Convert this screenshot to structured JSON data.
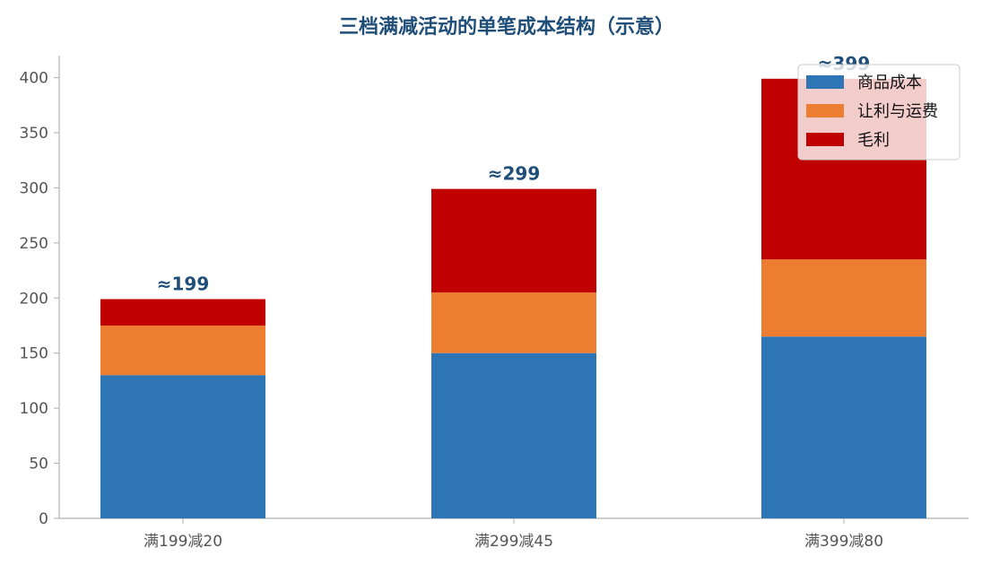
{
  "chart_data": {
    "type": "bar",
    "stacked": true,
    "title": "三档满减活动的单笔成本结构（示意）",
    "categories": [
      "满199减20",
      "满299减45",
      "满399减80"
    ],
    "series": [
      {
        "name": "商品成本",
        "values": [
          130,
          150,
          165
        ],
        "color": "#2e75b6"
      },
      {
        "name": "让利与运费",
        "values": [
          45,
          55,
          70
        ],
        "color": "#ed7d31"
      },
      {
        "name": "毛利",
        "values": [
          24,
          94,
          164
        ],
        "color": "#c00000"
      }
    ],
    "totals": [
      "≈199",
      "≈299",
      "≈399"
    ],
    "ylim": [
      0,
      420
    ],
    "yticks": [
      0,
      50,
      100,
      150,
      200,
      250,
      300,
      350,
      400
    ],
    "legend_position": "top-right",
    "grid": false
  }
}
